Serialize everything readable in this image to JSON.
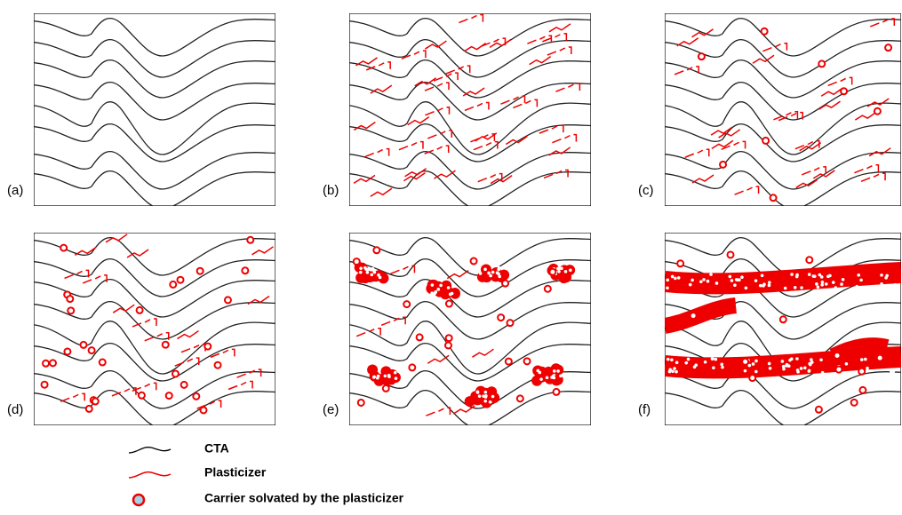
{
  "panels": [
    {
      "label": "(a)"
    },
    {
      "label": "(b)"
    },
    {
      "label": "(c)"
    },
    {
      "label": "(d)"
    },
    {
      "label": "(e)"
    },
    {
      "label": "(f)"
    }
  ],
  "legend": [
    {
      "label": "CTA"
    },
    {
      "label": "Plasticizer"
    },
    {
      "label": "Carrier solvated by the plasticizer"
    }
  ]
}
